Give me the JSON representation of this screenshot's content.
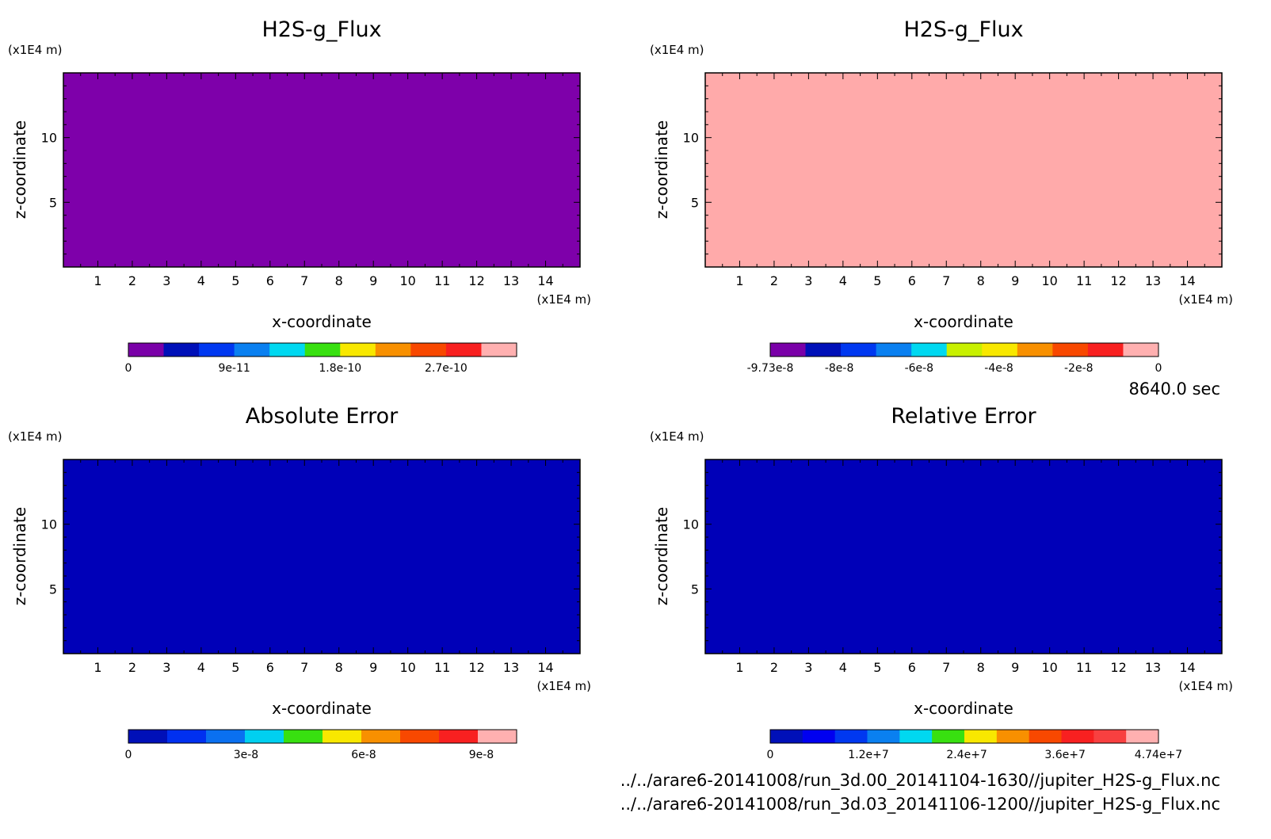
{
  "colors": {
    "colormap_10": [
      "#7a00a8",
      "#0010b8",
      "#0038f0",
      "#0a80f0",
      "#00d8f0",
      "#38e010",
      "#f8e800",
      "#f89000",
      "#f84800",
      "#f82020",
      "#ffb0b0"
    ],
    "colormap_9": [
      "#0010b8",
      "#0030f0",
      "#0a70f0",
      "#00d0f0",
      "#38e010",
      "#f8e800",
      "#f89000",
      "#f84800",
      "#f82020",
      "#ffb0b0"
    ]
  },
  "time_label": "8640.0 sec",
  "file_paths": [
    "../../arare6-20141008/run_3d.00_20141104-1630//jupiter_H2S-g_Flux.nc",
    "../../arare6-20141008/run_3d.03_20141106-1200//jupiter_H2S-g_Flux.nc"
  ],
  "chart_data": [
    {
      "type": "heatmap",
      "title": "H2S-g_Flux",
      "xlabel": "x-coordinate",
      "ylabel": "z-coordinate",
      "x_unit": "(x1E4 m)",
      "y_unit": "(x1E4 m)",
      "xlim": [
        0,
        15
      ],
      "ylim": [
        0,
        15
      ],
      "x_ticks": [
        "1",
        "2",
        "3",
        "4",
        "5",
        "6",
        "7",
        "8",
        "9",
        "10",
        "11",
        "12",
        "13",
        "14"
      ],
      "y_ticks": [
        "5",
        "10"
      ],
      "field_color": "#7e00aa",
      "colorbar": {
        "colors": [
          "#7a00a8",
          "#0010b8",
          "#0038f0",
          "#0a80f0",
          "#00d8f0",
          "#38e010",
          "#f8e800",
          "#f89000",
          "#f84800",
          "#f82020",
          "#ffb0b0"
        ],
        "range": [
          0,
          3.3e-10
        ],
        "ticks": [
          {
            "value": 0,
            "label": "0"
          },
          {
            "value": 9e-11,
            "label": "9e-11"
          },
          {
            "value": 1.8e-10,
            "label": "1.8e-10"
          },
          {
            "value": 2.7e-10,
            "label": "2.7e-10"
          }
        ]
      }
    },
    {
      "type": "heatmap",
      "title": "H2S-g_Flux",
      "xlabel": "x-coordinate",
      "ylabel": "z-coordinate",
      "x_unit": "(x1E4 m)",
      "y_unit": "(x1E4 m)",
      "xlim": [
        0,
        15
      ],
      "ylim": [
        0,
        15
      ],
      "x_ticks": [
        "1",
        "2",
        "3",
        "4",
        "5",
        "6",
        "7",
        "8",
        "9",
        "10",
        "11",
        "12",
        "13",
        "14"
      ],
      "y_ticks": [
        "5",
        "10"
      ],
      "field_color": "#ffaaaa",
      "colorbar": {
        "colors": [
          "#7a00a8",
          "#0010b8",
          "#0038f0",
          "#0a80f0",
          "#00d8f0",
          "#c8f000",
          "#f8e800",
          "#f89000",
          "#f84800",
          "#f82020",
          "#ffb0b0"
        ],
        "range": [
          -9.73e-08,
          0
        ],
        "ticks": [
          {
            "value": -9.73e-08,
            "label": "-9.73e-8"
          },
          {
            "value": -8e-08,
            "label": "-8e-8"
          },
          {
            "value": -6e-08,
            "label": "-6e-8"
          },
          {
            "value": -4e-08,
            "label": "-4e-8"
          },
          {
            "value": -2e-08,
            "label": "-2e-8"
          },
          {
            "value": 0,
            "label": "0"
          }
        ]
      }
    },
    {
      "type": "heatmap",
      "title": "Absolute Error",
      "xlabel": "x-coordinate",
      "ylabel": "z-coordinate",
      "x_unit": "(x1E4 m)",
      "y_unit": "(x1E4 m)",
      "xlim": [
        0,
        15
      ],
      "ylim": [
        0,
        15
      ],
      "x_ticks": [
        "1",
        "2",
        "3",
        "4",
        "5",
        "6",
        "7",
        "8",
        "9",
        "10",
        "11",
        "12",
        "13",
        "14"
      ],
      "y_ticks": [
        "5",
        "10"
      ],
      "field_color": "#0000b8",
      "colorbar": {
        "colors": [
          "#0010b8",
          "#0030f0",
          "#0a70f0",
          "#00d0f0",
          "#38e010",
          "#f8e800",
          "#f89000",
          "#f84800",
          "#f82020",
          "#ffb0b0"
        ],
        "range": [
          0,
          9.9e-08
        ],
        "ticks": [
          {
            "value": 0,
            "label": "0"
          },
          {
            "value": 3e-08,
            "label": "3e-8"
          },
          {
            "value": 6e-08,
            "label": "6e-8"
          },
          {
            "value": 9e-08,
            "label": "9e-8"
          }
        ]
      }
    },
    {
      "type": "heatmap",
      "title": "Relative Error",
      "xlabel": "x-coordinate",
      "ylabel": "z-coordinate",
      "x_unit": "(x1E4 m)",
      "y_unit": "(x1E4 m)",
      "xlim": [
        0,
        15
      ],
      "ylim": [
        0,
        15
      ],
      "x_ticks": [
        "1",
        "2",
        "3",
        "4",
        "5",
        "6",
        "7",
        "8",
        "9",
        "10",
        "11",
        "12",
        "13",
        "14"
      ],
      "y_ticks": [
        "5",
        "10"
      ],
      "field_color": "#0000b8",
      "colorbar": {
        "colors": [
          "#0010b8",
          "#0000f0",
          "#0038f0",
          "#0a80f0",
          "#00d8f0",
          "#38e010",
          "#f8e800",
          "#f89000",
          "#f84800",
          "#f82020",
          "#f84040",
          "#ffb0b0"
        ],
        "range": [
          0,
          47400000.0
        ],
        "ticks": [
          {
            "value": 0,
            "label": "0"
          },
          {
            "value": 12000000.0,
            "label": "1.2e+7"
          },
          {
            "value": 24000000.0,
            "label": "2.4e+7"
          },
          {
            "value": 36000000.0,
            "label": "3.6e+7"
          },
          {
            "value": 47400000.0,
            "label": "4.74e+7"
          }
        ]
      }
    }
  ]
}
